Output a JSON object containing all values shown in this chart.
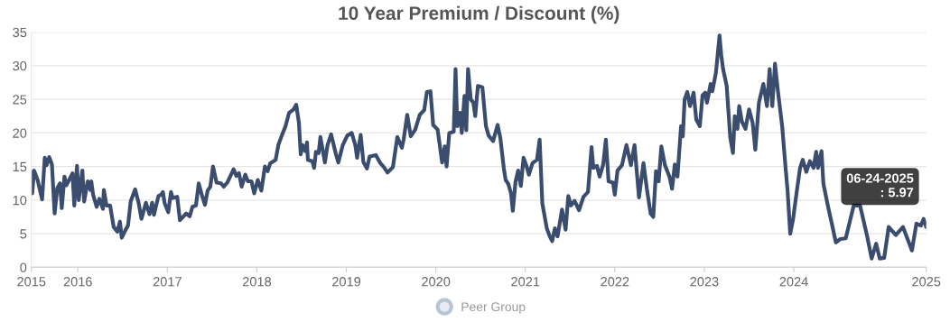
{
  "chart_data": {
    "type": "line",
    "title": "10 Year Premium / Discount (%)",
    "xlim": [
      2015.48,
      2025.48
    ],
    "xticks": [
      {
        "value": 2015.48,
        "label": "2015"
      },
      2016,
      2017,
      2018,
      2019,
      2020,
      2021,
      2022,
      2023,
      2024,
      {
        "value": 2025.48,
        "label": "2025"
      }
    ],
    "ylim": [
      0,
      35
    ],
    "yticks": [
      0,
      5,
      10,
      15,
      20,
      25,
      30,
      35
    ],
    "grid": "y",
    "legend": "bottom",
    "marker": "none",
    "line_style": "solid",
    "annotations": [
      {
        "text": "06-24-2025\n: 5.97",
        "x": 2025.48,
        "y": 5.97
      }
    ],
    "series": [
      {
        "color": "#3a4d6e",
        "x": [
          2015.48,
          2015.49,
          2015.51,
          2015.55,
          2015.6,
          2015.63,
          2015.65,
          2015.68,
          2015.71,
          2015.74,
          2015.77,
          2015.8,
          2015.82,
          2015.85,
          2015.87,
          2015.91,
          2015.94,
          2015.96,
          2015.99,
          2016.01,
          2016.05,
          2016.07,
          2016.11,
          2016.14,
          2016.15,
          2016.17,
          2016.21,
          2016.24,
          2016.28,
          2016.29,
          2016.32,
          2016.36,
          2016.4,
          2016.44,
          2016.47,
          2016.49,
          2016.53,
          2016.56,
          2016.59,
          2016.64,
          2016.68,
          2016.71,
          2016.76,
          2016.8,
          2016.83,
          2016.85,
          2016.9,
          2016.93,
          2016.95,
          2016.97,
          2017.01,
          2017.04,
          2017.06,
          2017.11,
          2017.14,
          2017.21,
          2017.25,
          2017.28,
          2017.32,
          2017.35,
          2017.38,
          2017.42,
          2017.45,
          2017.48,
          2017.51,
          2017.55,
          2017.6,
          2017.63,
          2017.67,
          2017.74,
          2017.77,
          2017.8,
          2017.83,
          2017.87,
          2017.9,
          2017.94,
          2017.97,
          2018.01,
          2018.05,
          2018.09,
          2018.12,
          2018.15,
          2018.21,
          2018.24,
          2018.27,
          2018.32,
          2018.36,
          2018.41,
          2018.44,
          2018.47,
          2018.49,
          2018.51,
          2018.54,
          2018.56,
          2018.57,
          2018.62,
          2018.64,
          2018.66,
          2018.69,
          2018.71,
          2018.76,
          2018.79,
          2018.83,
          2018.88,
          2018.91,
          2018.96,
          2019.01,
          2019.06,
          2019.1,
          2019.12,
          2019.16,
          2019.19,
          2019.23,
          2019.26,
          2019.33,
          2019.38,
          2019.42,
          2019.46,
          2019.52,
          2019.57,
          2019.62,
          2019.64,
          2019.68,
          2019.72,
          2019.77,
          2019.82,
          2019.87,
          2019.9,
          2019.94,
          2019.97,
          2020.02,
          2020.07,
          2020.1,
          2020.12,
          2020.15,
          2020.2,
          2020.22,
          2020.24,
          2020.27,
          2020.29,
          2020.32,
          2020.34,
          2020.36,
          2020.39,
          2020.42,
          2020.44,
          2020.47,
          2020.52,
          2020.56,
          2020.59,
          2020.64,
          2020.69,
          2020.72,
          2020.76,
          2020.78,
          2020.81,
          2020.84,
          2020.86,
          2020.89,
          2020.92,
          2020.95,
          2020.98,
          2021.01,
          2021.04,
          2021.08,
          2021.13,
          2021.16,
          2021.19,
          2021.24,
          2021.27,
          2021.3,
          2021.33,
          2021.36,
          2021.41,
          2021.45,
          2021.48,
          2021.51,
          2021.55,
          2021.6,
          2021.65,
          2021.7,
          2021.74,
          2021.76,
          2021.8,
          2021.83,
          2021.87,
          2021.9,
          2021.93,
          2021.98,
          2022.0,
          2022.03,
          2022.08,
          2022.13,
          2022.18,
          2022.22,
          2022.27,
          2022.32,
          2022.36,
          2022.4,
          2022.43,
          2022.46,
          2022.49,
          2022.52,
          2022.56,
          2022.61,
          2022.64,
          2022.67,
          2022.7,
          2022.74,
          2022.76,
          2022.78,
          2022.81,
          2022.84,
          2022.88,
          2022.91,
          2022.95,
          2022.98,
          2023.01,
          2023.03,
          2023.07,
          2023.09,
          2023.13,
          2023.17,
          2023.19,
          2023.21,
          2023.25,
          2023.29,
          2023.32,
          2023.34,
          2023.37,
          2023.39,
          2023.42,
          2023.46,
          2023.5,
          2023.54,
          2023.57,
          2023.61,
          2023.66,
          2023.7,
          2023.73,
          2023.76,
          2023.79,
          2023.82,
          2023.87,
          2023.91,
          2023.93,
          2023.96,
          2023.99,
          2024.03,
          2024.07,
          2024.1,
          2024.14,
          2024.18,
          2024.22,
          2024.25,
          2024.27,
          2024.31,
          2024.33,
          2024.38,
          2024.42,
          2024.47,
          2024.52,
          2024.58,
          2024.67,
          2024.74,
          2024.82,
          2024.87,
          2024.92,
          2024.96,
          2025.01,
          2025.06,
          2025.14,
          2025.22,
          2025.32,
          2025.37,
          2025.42,
          2025.45,
          2025.48
        ],
        "values": [
          14.2,
          11,
          14.4,
          13,
          10.1,
          16.3,
          15.2,
          16.4,
          15.3,
          8,
          11.8,
          12.5,
          8.8,
          13.5,
          12.2,
          13.2,
          14,
          9.2,
          15.1,
          10,
          14.4,
          9.8,
          12.8,
          11.5,
          12.8,
          10.8,
          9,
          10.2,
          8.7,
          11.5,
          9.2,
          9.2,
          6,
          5.3,
          6.8,
          4.4,
          5.5,
          6.2,
          9.8,
          11.6,
          9.5,
          7.2,
          9.6,
          7.9,
          9.6,
          7.8,
          10.6,
          10.8,
          11.2,
          9.5,
          8.2,
          11.2,
          10.3,
          10.5,
          7,
          8,
          7.6,
          9,
          9.2,
          12.5,
          11,
          9.3,
          11.4,
          12,
          15,
          12.6,
          12.5,
          12,
          12.6,
          14.6,
          13.6,
          14,
          12,
          13.8,
          12.8,
          12.8,
          11,
          13,
          11.4,
          15,
          14.3,
          15.5,
          16,
          18.2,
          19.3,
          21,
          23,
          23.5,
          24.2,
          21.5,
          16.8,
          18.2,
          17.3,
          18.6,
          16,
          15.8,
          14.8,
          17.2,
          17,
          19.4,
          15.6,
          18.2,
          19.8,
          17,
          15.6,
          18.2,
          19.6,
          20,
          18.2,
          16.3,
          19.7,
          15.7,
          14.7,
          16.5,
          16.7,
          15.5,
          14.9,
          14.1,
          14.9,
          19.4,
          17.8,
          19,
          22.7,
          19.5,
          20.5,
          22.7,
          23.4,
          26.1,
          26.2,
          21.2,
          20.5,
          15.6,
          18,
          15,
          20,
          20.2,
          29.5,
          21,
          23,
          20,
          25.5,
          20.4,
          29.5,
          25,
          24.5,
          22.5,
          27,
          26.8,
          21,
          19.6,
          18.8,
          21.2,
          19.3,
          14.7,
          13,
          12.4,
          11,
          8.4,
          12.7,
          14.4,
          12.1,
          16.3,
          15.2,
          13.8,
          15.5,
          16,
          19,
          9.5,
          5.8,
          4.7,
          3.9,
          5.8,
          4.6,
          8.6,
          5.6,
          10.6,
          9.2,
          9.9,
          8.5,
          10.5,
          11.2,
          17.9,
          14.8,
          15.1,
          13.5,
          15.3,
          19,
          12.8,
          12.6,
          10.8,
          14.4,
          15.2,
          18.2,
          15.2,
          18.2,
          10.4,
          15.5,
          11.5,
          8,
          7.5,
          14.3,
          12.8,
          18,
          15.2,
          13.5,
          11.7,
          15.3,
          13.5,
          21,
          19.5,
          25,
          26.1,
          24,
          26,
          22,
          21,
          25.6,
          26,
          24.5,
          27.3,
          26.2,
          29,
          34.5,
          31.5,
          29.5,
          27,
          19.3,
          17,
          22.5,
          20.6,
          24,
          21.7,
          20.6,
          23.5,
          21.5,
          17.5,
          24.5,
          27.3,
          24,
          29.5,
          24,
          30.3,
          26.5,
          21,
          14.5,
          11.5,
          5,
          7,
          11,
          14.8,
          16,
          14.2,
          15.8,
          14.8,
          17.2,
          14.8,
          17.3,
          12.5,
          9.2,
          6.8,
          3.7,
          4.2,
          4.3,
          9.2,
          9.2,
          4.6,
          1.3,
          3.5,
          1.3,
          1.4,
          6,
          4.8,
          6,
          2.5,
          6.5,
          6.2,
          7.2,
          5.97
        ]
      },
      {
        "name": "Peer Group",
        "color": "#b8c4d4"
      }
    ]
  }
}
